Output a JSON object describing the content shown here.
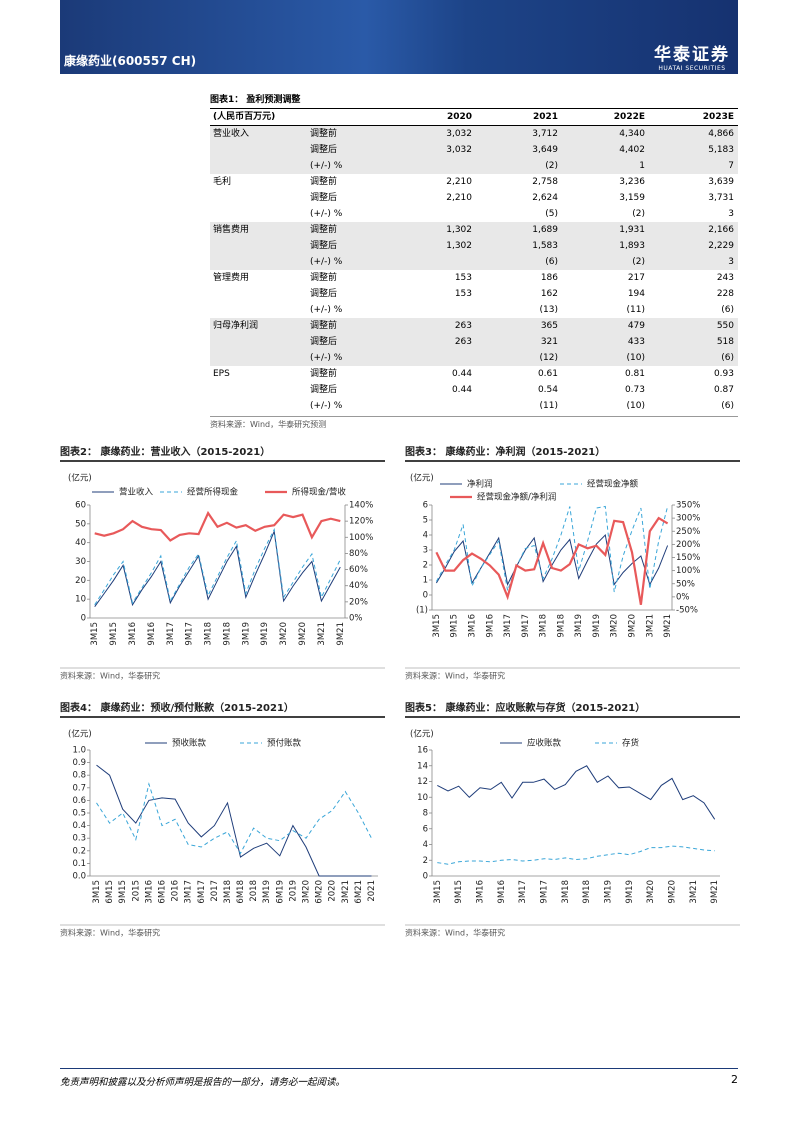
{
  "header": {
    "company": "康缘药业(600557 CH)",
    "logo": "华泰证券",
    "logo_sub": "HUATAI SECURITIES"
  },
  "table": {
    "title": "图表1：  盈利预测调整",
    "unit": "(人民币百万元)",
    "columns": [
      "2020",
      "2021",
      "2022E",
      "2023E"
    ],
    "groups": [
      {
        "name": "营业收入",
        "rows": [
          {
            "label": "调整前",
            "values": [
              "3,032",
              "3,712",
              "4,340",
              "4,866"
            ]
          },
          {
            "label": "调整后",
            "values": [
              "3,032",
              "3,649",
              "4,402",
              "5,183"
            ]
          },
          {
            "label": "(+/-) %",
            "values": [
              null,
              "(2)",
              "1",
              "7"
            ]
          }
        ]
      },
      {
        "name": "毛利",
        "rows": [
          {
            "label": "调整前",
            "values": [
              "2,210",
              "2,758",
              "3,236",
              "3,639"
            ]
          },
          {
            "label": "调整后",
            "values": [
              "2,210",
              "2,624",
              "3,159",
              "3,731"
            ]
          },
          {
            "label": "(+/-) %",
            "values": [
              null,
              "(5)",
              "(2)",
              "3"
            ]
          }
        ]
      },
      {
        "name": "销售费用",
        "rows": [
          {
            "label": "调整前",
            "values": [
              "1,302",
              "1,689",
              "1,931",
              "2,166"
            ]
          },
          {
            "label": "调整后",
            "values": [
              "1,302",
              "1,583",
              "1,893",
              "2,229"
            ]
          },
          {
            "label": "(+/-) %",
            "values": [
              null,
              "(6)",
              "(2)",
              "3"
            ]
          }
        ]
      },
      {
        "name": "管理费用",
        "rows": [
          {
            "label": "调整前",
            "values": [
              "153",
              "186",
              "217",
              "243"
            ]
          },
          {
            "label": "调整后",
            "values": [
              "153",
              "162",
              "194",
              "228"
            ]
          },
          {
            "label": "(+/-) %",
            "values": [
              null,
              "(13)",
              "(11)",
              "(6)"
            ]
          }
        ]
      },
      {
        "name": "归母净利润",
        "rows": [
          {
            "label": "调整前",
            "values": [
              "263",
              "365",
              "479",
              "550"
            ]
          },
          {
            "label": "调整后",
            "values": [
              "263",
              "321",
              "433",
              "518"
            ]
          },
          {
            "label": "(+/-) %",
            "values": [
              null,
              "(12)",
              "(10)",
              "(6)"
            ]
          }
        ]
      },
      {
        "name": "EPS",
        "rows": [
          {
            "label": "调整前",
            "values": [
              "0.44",
              "0.61",
              "0.81",
              "0.93"
            ]
          },
          {
            "label": "调整后",
            "values": [
              "0.44",
              "0.54",
              "0.73",
              "0.87"
            ]
          },
          {
            "label": "(+/-) %",
            "values": [
              null,
              "(11)",
              "(10)",
              "(6)"
            ]
          }
        ]
      }
    ],
    "source": "资料来源：Wind，华泰研究预测"
  },
  "chart_data": [
    {
      "type": "line",
      "title": "图表2：  康缘药业：营业收入（2015-2021）",
      "unit_label": "(亿元)",
      "source": "资料来源：Wind，华泰研究",
      "categories": [
        "3M15",
        null,
        "9M15",
        null,
        "3M16",
        null,
        "9M16",
        null,
        "3M17",
        null,
        "9M17",
        null,
        "3M18",
        null,
        "9M18",
        null,
        "3M19",
        null,
        "9M19",
        null,
        "3M20",
        null,
        "9M20",
        null,
        "3M21",
        null,
        "9M21"
      ],
      "ylim": [
        0,
        60
      ],
      "yticks": [
        0,
        10,
        20,
        30,
        40,
        50,
        60
      ],
      "y2lim": [
        0,
        140
      ],
      "y2ticks": [
        {
          "value": 0,
          "label": "0%"
        },
        {
          "value": 20,
          "label": "20%"
        },
        {
          "value": 40,
          "label": "40%"
        },
        {
          "value": 60,
          "label": "60%"
        },
        {
          "value": 80,
          "label": "80%"
        },
        {
          "value": 100,
          "label": "100%"
        },
        {
          "value": 120,
          "label": "120%"
        },
        {
          "value": 140,
          "label": "140%"
        }
      ],
      "series": [
        {
          "name": "营业收入",
          "color": "#1f3d7a",
          "dashed": false,
          "values": [
            6,
            13,
            20,
            28,
            7,
            15,
            22,
            30,
            8,
            17,
            25,
            33,
            10,
            20,
            30,
            38,
            11,
            23,
            34,
            46,
            9,
            17,
            24,
            30,
            9,
            18,
            27
          ]
        },
        {
          "name": "经营所得现金",
          "color": "#3aa6d8",
          "dashed": true,
          "values": [
            7,
            15,
            23,
            30,
            8,
            16,
            24,
            33,
            9,
            18,
            27,
            34,
            12,
            22,
            32,
            41,
            13,
            26,
            37,
            47,
            11,
            19,
            27,
            34,
            11,
            21,
            31
          ]
        },
        {
          "name": "所得现金/营收",
          "color": "#e8595a",
          "dashed": false,
          "thick": true,
          "axis": "y2",
          "values": [
            105,
            102,
            105,
            110,
            120,
            113,
            110,
            109,
            96,
            103,
            105,
            104,
            130,
            113,
            118,
            112,
            115,
            108,
            113,
            115,
            128,
            125,
            128,
            100,
            120,
            123,
            120
          ]
        }
      ]
    },
    {
      "type": "line",
      "title": "图表3：  康缘药业：净利润（2015-2021）",
      "unit_label": "(亿元)",
      "source": "资料来源：Wind，华泰研究",
      "categories": [
        "3M15",
        null,
        "9M15",
        null,
        "3M16",
        null,
        "9M16",
        null,
        "3M17",
        null,
        "9M17",
        null,
        "3M18",
        null,
        "9M18",
        null,
        "3M19",
        null,
        "9M19",
        null,
        "3M20",
        null,
        "9M20",
        null,
        "3M21",
        null,
        "9M21"
      ],
      "ylim": [
        -1,
        6
      ],
      "yticks": [
        {
          "value": -1,
          "label": "(1)"
        },
        0,
        1,
        2,
        3,
        4,
        5,
        6
      ],
      "y2lim": [
        -50,
        350
      ],
      "y2ticks": [
        {
          "value": -50,
          "label": "-50%"
        },
        {
          "value": 0,
          "label": "0%"
        },
        {
          "value": 50,
          "label": "50%"
        },
        {
          "value": 100,
          "label": "100%"
        },
        {
          "value": 150,
          "label": "150%"
        },
        {
          "value": 200,
          "label": "200%"
        },
        {
          "value": 250,
          "label": "250%"
        },
        {
          "value": 300,
          "label": "300%"
        },
        {
          "value": 350,
          "label": "350%"
        }
      ],
      "series": [
        {
          "name": "净利润",
          "color": "#1f3d7a",
          "dashed": false,
          "values": [
            0.8,
            1.8,
            2.9,
            3.6,
            0.8,
            1.8,
            2.8,
            3.8,
            0.7,
            1.9,
            3.0,
            3.8,
            0.9,
            2.0,
            3.0,
            3.7,
            1.1,
            2.3,
            3.4,
            4.0,
            0.7,
            1.5,
            2.1,
            2.6,
            0.7,
            1.8,
            3.3
          ]
        },
        {
          "name": "经营现金净额",
          "color": "#3aa6d8",
          "dashed": true,
          "values": [
            0.9,
            2.0,
            3.0,
            4.7,
            0.6,
            1.8,
            2.7,
            3.6,
            0.3,
            1.9,
            3.1,
            3.3,
            1.1,
            2.4,
            4.0,
            5.9,
            1.6,
            3.6,
            5.8,
            5.9,
            0.2,
            2.6,
            4.3,
            5.8,
            0.4,
            3.6,
            5.9
          ]
        },
        {
          "name": "经营现金净额/净利润",
          "color": "#e8595a",
          "dashed": false,
          "thick": true,
          "axis": "y2",
          "values": [
            170,
            100,
            100,
            140,
            165,
            145,
            120,
            85,
            0,
            120,
            100,
            105,
            205,
            110,
            100,
            125,
            200,
            185,
            195,
            160,
            290,
            285,
            170,
            -30,
            250,
            300,
            280
          ]
        }
      ]
    },
    {
      "type": "line",
      "title": "图表4：  康缘药业：预收/预付账款（2015-2021）",
      "unit_label": "(亿元)",
      "source": "资料来源：Wind，华泰研究",
      "categories": [
        "3M15",
        "6M15",
        "9M15",
        "2015",
        "3M16",
        "6M16",
        "2016",
        "3M17",
        "6M17",
        "2017",
        "3M18",
        "6M18",
        "2018",
        "3M19",
        "6M19",
        "2019",
        "3M20",
        "6M20",
        "2020",
        "3M21",
        "6M21",
        "2021"
      ],
      "ylim": [
        0,
        1
      ],
      "yticks": [
        {
          "value": 0,
          "label": "0.0"
        },
        0.1,
        0.2,
        0.3,
        0.4,
        0.5,
        0.6,
        0.7,
        0.8,
        0.9,
        {
          "value": 1,
          "label": "1.0"
        }
      ],
      "series": [
        {
          "name": "预收账款",
          "color": "#1f3d7a",
          "dashed": false,
          "values": [
            0.88,
            0.8,
            0.53,
            0.42,
            0.6,
            0.62,
            0.61,
            0.42,
            0.31,
            0.4,
            0.58,
            0.15,
            0.22,
            0.26,
            0.16,
            0.4,
            0.23,
            0,
            0,
            0,
            0,
            0
          ]
        },
        {
          "name": "预付账款",
          "color": "#3aa6d8",
          "dashed": true,
          "values": [
            0.58,
            0.42,
            0.5,
            0.29,
            0.73,
            0.4,
            0.45,
            0.25,
            0.23,
            0.3,
            0.35,
            0.18,
            0.38,
            0.3,
            0.28,
            0.36,
            0.3,
            0.45,
            0.52,
            0.67,
            0.5,
            0.3
          ]
        }
      ]
    },
    {
      "type": "line",
      "title": "图表5：  康缘药业：应收账款与存货（2015-2021）",
      "unit_label": "(亿元)",
      "source": "资料来源：Wind，华泰研究",
      "categories": [
        "3M15",
        null,
        "9M15",
        null,
        "3M16",
        null,
        "9M16",
        null,
        "3M17",
        null,
        "9M17",
        null,
        "3M18",
        null,
        "9M18",
        null,
        "3M19",
        null,
        "9M19",
        null,
        "3M20",
        null,
        "9M20",
        null,
        "3M21",
        null,
        "9M21"
      ],
      "ylim": [
        0,
        16
      ],
      "yticks": [
        0,
        2,
        4,
        6,
        8,
        10,
        12,
        14,
        16
      ],
      "series": [
        {
          "name": "应收账款",
          "color": "#1f3d7a",
          "dashed": false,
          "values": [
            11.5,
            10.8,
            11.4,
            10.0,
            11.2,
            11.0,
            11.9,
            9.9,
            11.9,
            11.9,
            12.3,
            11.0,
            11.6,
            13.3,
            14.0,
            11.9,
            12.7,
            11.2,
            11.3,
            10.5,
            9.7,
            11.5,
            12.4,
            9.7,
            10.2,
            9.3,
            7.2
          ]
        },
        {
          "name": "存货",
          "color": "#3aa6d8",
          "dashed": true,
          "values": [
            1.7,
            1.5,
            1.8,
            1.9,
            1.9,
            1.8,
            2.0,
            2.1,
            1.9,
            2.0,
            2.2,
            2.1,
            2.3,
            2.1,
            2.2,
            2.5,
            2.7,
            2.9,
            2.7,
            3.1,
            3.6,
            3.6,
            3.8,
            3.7,
            3.5,
            3.3,
            3.2
          ]
        }
      ]
    }
  ],
  "footer": {
    "disclaimer": "免责声明和披露以及分析师声明是报告的一部分，请务必一起阅读。",
    "page": "2"
  }
}
